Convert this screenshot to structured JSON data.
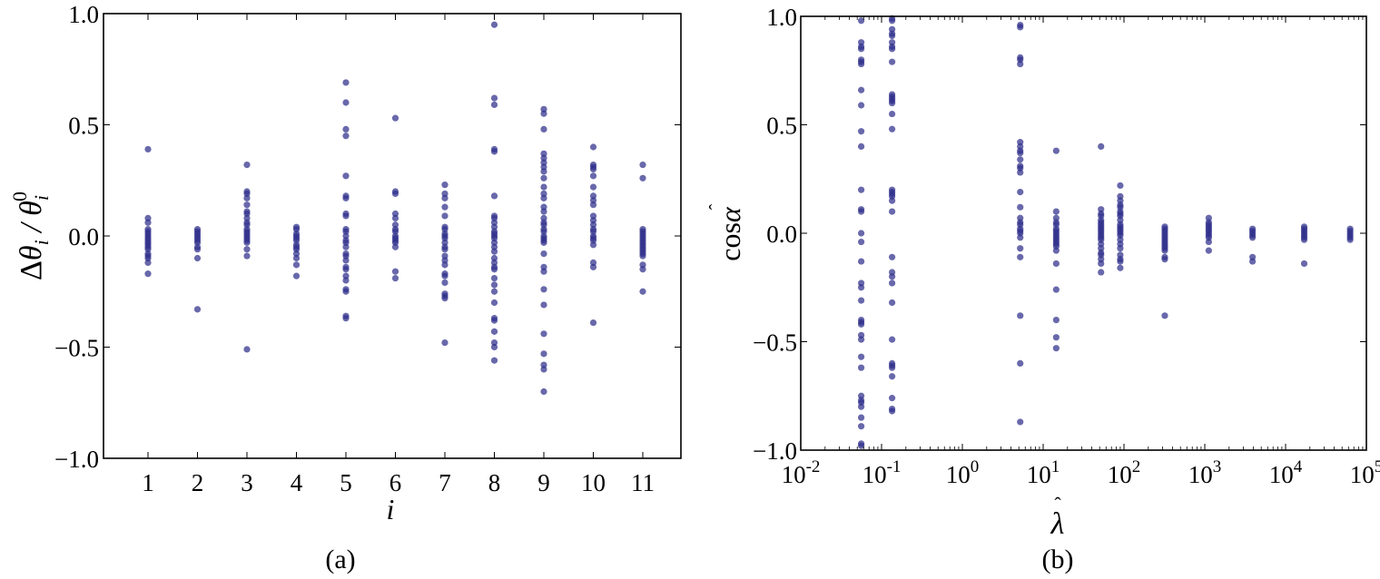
{
  "figure": {
    "panels": [
      {
        "caption": "(a)",
        "xlabel": "i",
        "ylabel": "Δθ_i / θ_i^0"
      },
      {
        "caption": "(b)",
        "xlabel": "λ̂",
        "ylabel": "cos α̂"
      }
    ],
    "point_color": "#2e2e8a",
    "point_opacity": 0.72
  },
  "chart_data": [
    {
      "type": "scatter",
      "title": "",
      "caption": "(a)",
      "xlabel": "i",
      "ylabel": "Δθ_i/θ_i^0",
      "xscale": "linear",
      "ylim": [
        -1.0,
        1.0
      ],
      "xlim": [
        0.1,
        11.8
      ],
      "xticks": [
        1,
        2,
        3,
        4,
        5,
        6,
        7,
        8,
        9,
        10,
        11
      ],
      "yticks": [
        -1.0,
        -0.5,
        0.0,
        0.5,
        1.0
      ],
      "ytick_labels": [
        "−1.0",
        "−0.5",
        "0.0",
        "0.5",
        "1.0"
      ],
      "grid": false,
      "legend": null,
      "columns": [
        {
          "x": 1,
          "y": [
            0.39,
            0.08,
            0.06,
            0.03,
            0.02,
            0.01,
            0.0,
            -0.01,
            -0.02,
            -0.03,
            -0.04,
            -0.05,
            -0.06,
            -0.08,
            -0.09,
            -0.1,
            -0.12,
            -0.17
          ]
        },
        {
          "x": 2,
          "y": [
            0.03,
            0.02,
            0.01,
            0.0,
            -0.01,
            -0.02,
            -0.03,
            -0.05,
            -0.06,
            -0.1,
            -0.33
          ]
        },
        {
          "x": 3,
          "y": [
            0.32,
            0.2,
            0.19,
            0.17,
            0.14,
            0.11,
            0.1,
            0.08,
            0.06,
            0.05,
            0.03,
            0.02,
            0.01,
            0.0,
            -0.01,
            -0.02,
            -0.03,
            -0.06,
            -0.09,
            -0.51
          ]
        },
        {
          "x": 4,
          "y": [
            0.04,
            0.03,
            0.01,
            0.0,
            -0.01,
            -0.02,
            -0.04,
            -0.05,
            -0.06,
            -0.08,
            -0.1,
            -0.13,
            -0.18
          ]
        },
        {
          "x": 5,
          "y": [
            0.69,
            0.6,
            0.48,
            0.45,
            0.27,
            0.18,
            0.17,
            0.1,
            0.09,
            0.03,
            0.02,
            0.0,
            -0.02,
            -0.03,
            -0.05,
            -0.08,
            -0.09,
            -0.11,
            -0.14,
            -0.15,
            -0.18,
            -0.2,
            -0.24,
            -0.25,
            -0.36,
            -0.37
          ]
        },
        {
          "x": 6,
          "y": [
            0.53,
            0.2,
            0.19,
            0.1,
            0.08,
            0.05,
            0.03,
            0.02,
            0.0,
            -0.01,
            -0.02,
            -0.03,
            -0.05,
            -0.16,
            -0.19
          ]
        },
        {
          "x": 7,
          "y": [
            0.23,
            0.19,
            0.17,
            0.13,
            0.09,
            0.04,
            0.03,
            0.01,
            0.0,
            -0.01,
            -0.03,
            -0.05,
            -0.06,
            -0.09,
            -0.11,
            -0.13,
            -0.17,
            -0.18,
            -0.21,
            -0.26,
            -0.27,
            -0.28,
            -0.48
          ]
        },
        {
          "x": 8,
          "y": [
            0.95,
            0.62,
            0.59,
            0.39,
            0.38,
            0.18,
            0.09,
            0.08,
            0.06,
            0.04,
            0.02,
            0.01,
            0.0,
            -0.01,
            -0.03,
            -0.05,
            -0.07,
            -0.1,
            -0.12,
            -0.14,
            -0.15,
            -0.19,
            -0.22,
            -0.25,
            -0.3,
            -0.37,
            -0.38,
            -0.43,
            -0.48,
            -0.5,
            -0.56
          ]
        },
        {
          "x": 9,
          "y": [
            0.57,
            0.55,
            0.48,
            0.37,
            0.35,
            0.33,
            0.31,
            0.29,
            0.26,
            0.22,
            0.19,
            0.17,
            0.13,
            0.11,
            0.08,
            0.06,
            0.05,
            0.03,
            0.02,
            0.0,
            -0.01,
            -0.02,
            -0.03,
            -0.08,
            -0.14,
            -0.16,
            -0.24,
            -0.31,
            -0.44,
            -0.53,
            -0.58,
            -0.6,
            -0.7
          ]
        },
        {
          "x": 10,
          "y": [
            0.4,
            0.32,
            0.31,
            0.3,
            0.27,
            0.22,
            0.18,
            0.16,
            0.14,
            0.09,
            0.07,
            0.05,
            0.03,
            0.02,
            0.0,
            -0.01,
            -0.02,
            -0.04,
            -0.12,
            -0.14,
            -0.39
          ]
        },
        {
          "x": 11,
          "y": [
            0.32,
            0.26,
            0.03,
            0.02,
            0.01,
            0.0,
            -0.01,
            -0.02,
            -0.03,
            -0.04,
            -0.05,
            -0.06,
            -0.07,
            -0.08,
            -0.09,
            -0.13,
            -0.15,
            -0.25
          ]
        }
      ]
    },
    {
      "type": "scatter",
      "title": "",
      "caption": "(b)",
      "xlabel": "λ̂",
      "ylabel": "cos α̂",
      "xscale": "log",
      "xlim": [
        0.01,
        100000
      ],
      "ylim": [
        -1.0,
        1.0
      ],
      "xticks": [
        0.01,
        0.1,
        1,
        10,
        100,
        1000,
        10000,
        100000
      ],
      "xtick_labels": [
        "10-2",
        "10-1",
        "100",
        "101",
        "102",
        "103",
        "104",
        "105"
      ],
      "yticks": [
        -1.0,
        -0.5,
        0.0,
        0.5,
        1.0
      ],
      "ytick_labels": [
        "−1.0",
        "−0.5",
        "0.0",
        "0.5",
        "1.0"
      ],
      "grid": false,
      "legend": null,
      "columns": [
        {
          "x": 0.056,
          "y": [
            0.98,
            0.88,
            0.86,
            0.85,
            0.8,
            0.79,
            0.78,
            0.66,
            0.59,
            0.47,
            0.4,
            0.2,
            0.11,
            0.1,
            0.0,
            -0.04,
            -0.13,
            -0.23,
            -0.25,
            -0.31,
            -0.4,
            -0.41,
            -0.42,
            -0.47,
            -0.49,
            -0.57,
            -0.62,
            -0.75,
            -0.77,
            -0.78,
            -0.8,
            -0.85,
            -0.89,
            -0.97,
            -0.98
          ]
        },
        {
          "x": 0.135,
          "y": [
            0.99,
            0.98,
            0.94,
            0.92,
            0.91,
            0.88,
            0.86,
            0.85,
            0.79,
            0.64,
            0.63,
            0.62,
            0.61,
            0.6,
            0.55,
            0.48,
            0.2,
            0.19,
            0.18,
            0.17,
            0.15,
            0.1,
            -0.11,
            -0.18,
            -0.2,
            -0.23,
            -0.32,
            -0.49,
            -0.6,
            -0.61,
            -0.62,
            -0.66,
            -0.76,
            -0.81,
            -0.82
          ]
        },
        {
          "x": 5.2,
          "y": [
            0.96,
            0.95,
            0.81,
            0.8,
            0.78,
            0.42,
            0.4,
            0.38,
            0.37,
            0.34,
            0.31,
            0.3,
            0.28,
            0.19,
            0.12,
            0.07,
            0.05,
            0.04,
            0.02,
            0.01,
            0.0,
            -0.02,
            -0.07,
            -0.11,
            -0.38,
            -0.6,
            -0.87
          ]
        },
        {
          "x": 14.5,
          "y": [
            0.38,
            0.1,
            0.07,
            0.05,
            0.04,
            0.02,
            0.01,
            0.0,
            -0.01,
            -0.02,
            -0.03,
            -0.04,
            -0.05,
            -0.06,
            -0.08,
            -0.14,
            -0.26,
            -0.4,
            -0.48,
            -0.53
          ]
        },
        {
          "x": 52,
          "y": [
            0.4,
            0.11,
            0.09,
            0.08,
            0.06,
            0.05,
            0.04,
            0.03,
            0.02,
            0.01,
            0.0,
            -0.01,
            -0.02,
            -0.03,
            -0.05,
            -0.07,
            -0.09,
            -0.1,
            -0.12,
            -0.14,
            -0.18
          ]
        },
        {
          "x": 90,
          "y": [
            0.22,
            0.17,
            0.15,
            0.13,
            0.12,
            0.1,
            0.09,
            0.08,
            0.06,
            0.04,
            0.03,
            0.02,
            0.01,
            0.0,
            -0.01,
            -0.03,
            -0.05,
            -0.07,
            -0.1,
            -0.12,
            -0.13,
            -0.16
          ]
        },
        {
          "x": 320,
          "y": [
            0.03,
            0.02,
            0.01,
            0.0,
            -0.01,
            -0.02,
            -0.03,
            -0.04,
            -0.05,
            -0.06,
            -0.07,
            -0.08,
            -0.11,
            -0.12,
            -0.38
          ]
        },
        {
          "x": 1120,
          "y": [
            0.07,
            0.05,
            0.04,
            0.03,
            0.02,
            0.01,
            0.0,
            -0.01,
            -0.02,
            -0.04,
            -0.08
          ]
        },
        {
          "x": 3900,
          "y": [
            0.02,
            0.01,
            0.0,
            -0.01,
            -0.02,
            -0.11,
            -0.13
          ]
        },
        {
          "x": 17000,
          "y": [
            0.03,
            0.02,
            0.01,
            0.0,
            -0.01,
            -0.02,
            -0.03,
            -0.14
          ]
        },
        {
          "x": 63000,
          "y": [
            0.02,
            0.01,
            0.0,
            -0.01,
            -0.02,
            -0.03
          ]
        }
      ]
    }
  ]
}
